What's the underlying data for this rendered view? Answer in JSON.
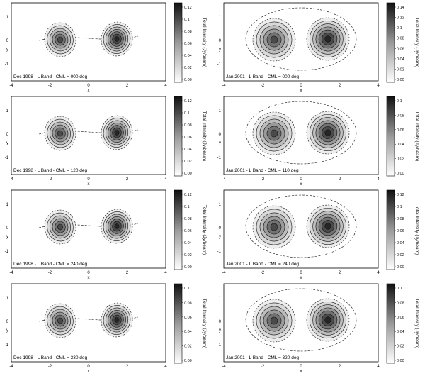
{
  "colorbar_label": "Total Intensity (Jy/beam)",
  "colors": {
    "frame": "#000000",
    "contour": "#111111",
    "fill_light": "#dcdcdc",
    "fill_dark": "#1a1a1a"
  },
  "columns": [
    {
      "epoch": "Dec 1998",
      "x_ticks": [
        "-4",
        "-2",
        "0",
        "2",
        "4"
      ],
      "x_label_bottom": "x",
      "y_ticks": [
        "1",
        "0",
        "-1"
      ],
      "y_label": "y",
      "lobe_style": "compact",
      "panels": [
        {
          "label": "Dec 1998 - L Band - CML = 000 deg",
          "cml_deg": 0,
          "colorbar_ticks": [
            "0.12",
            "0.1",
            "0.08",
            "0.06",
            "0.04",
            "0.02",
            "0.00"
          ]
        },
        {
          "label": "Dec 1998 - L Band - CML = 120 deg",
          "cml_deg": 120,
          "colorbar_ticks": [
            "0.12",
            "0.1",
            "0.08",
            "0.06",
            "0.04",
            "0.02",
            "0.00"
          ]
        },
        {
          "label": "Dec 1998 - L Band - CML = 240 deg",
          "cml_deg": 240,
          "colorbar_ticks": [
            "0.12",
            "0.1",
            "0.08",
            "0.06",
            "0.04",
            "0.02",
            "0.00"
          ]
        },
        {
          "label": "Dec 1998 - L Band - CML = 330 deg",
          "cml_deg": 330,
          "colorbar_ticks": [
            "0.1",
            "0.08",
            "0.06",
            "0.04",
            "0.02",
            "0.00"
          ]
        }
      ]
    },
    {
      "epoch": "Jan 2001",
      "x_ticks": [
        "-4",
        "-2",
        "0",
        "2",
        "4"
      ],
      "x_label_bottom": "x",
      "y_ticks": [
        "1",
        "0",
        "-1"
      ],
      "y_label": "y",
      "lobe_style": "extended",
      "panels": [
        {
          "label": "Jan 2001 - L Band - CML = 000 deg",
          "cml_deg": 0,
          "colorbar_ticks": [
            "0.14",
            "0.12",
            "0.1",
            "0.08",
            "0.06",
            "0.04",
            "0.02",
            "0.00"
          ]
        },
        {
          "label": "Jan 2001 - L Band - CML = 110 deg",
          "cml_deg": 110,
          "colorbar_ticks": [
            "0.1",
            "0.08",
            "0.06",
            "0.04",
            "0.02",
            "0.00"
          ]
        },
        {
          "label": "Jan 2001 - L Band - CML = 240 deg",
          "cml_deg": 240,
          "colorbar_ticks": [
            "0.12",
            "0.1",
            "0.08",
            "0.06",
            "0.04",
            "0.02",
            "0.00"
          ]
        },
        {
          "label": "Jan 2001 - L Band - CML = 320 deg",
          "cml_deg": 320,
          "colorbar_ticks": [
            "0.1",
            "0.08",
            "0.06",
            "0.04",
            "0.02",
            "0.00"
          ]
        }
      ]
    }
  ]
}
